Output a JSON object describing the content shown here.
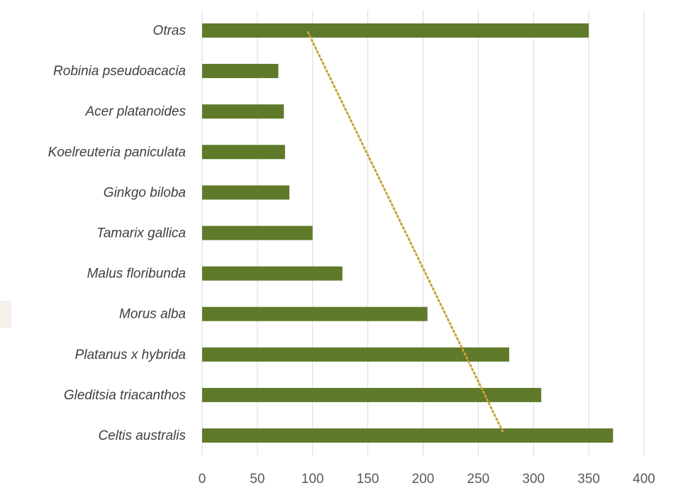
{
  "chart_data": {
    "type": "bar",
    "orientation": "horizontal",
    "categories": [
      "Celtis australis",
      "Gleditsia triacanthos",
      "Platanus x hybrida",
      "Morus alba",
      "Malus floribunda",
      "Tamarix gallica",
      "Ginkgo biloba",
      "Koelreuteria paniculata",
      "Acer platanoides",
      "Robinia pseudoacacia",
      "Otras"
    ],
    "values": [
      372,
      307,
      278,
      204,
      127,
      100,
      79,
      75,
      74,
      69,
      350
    ],
    "xlim": [
      0,
      400
    ],
    "xticks": [
      0,
      50,
      100,
      150,
      200,
      250,
      300,
      350,
      400
    ],
    "grid": "vertical",
    "bar_color": "#5e7a2a",
    "trendline": {
      "style": "dotted",
      "color": "#c9a23a",
      "start": {
        "category": "Celtis australis",
        "value": 272
      },
      "end": {
        "category": "Otras",
        "value": 95
      }
    },
    "title": "",
    "xlabel": "",
    "ylabel": ""
  }
}
